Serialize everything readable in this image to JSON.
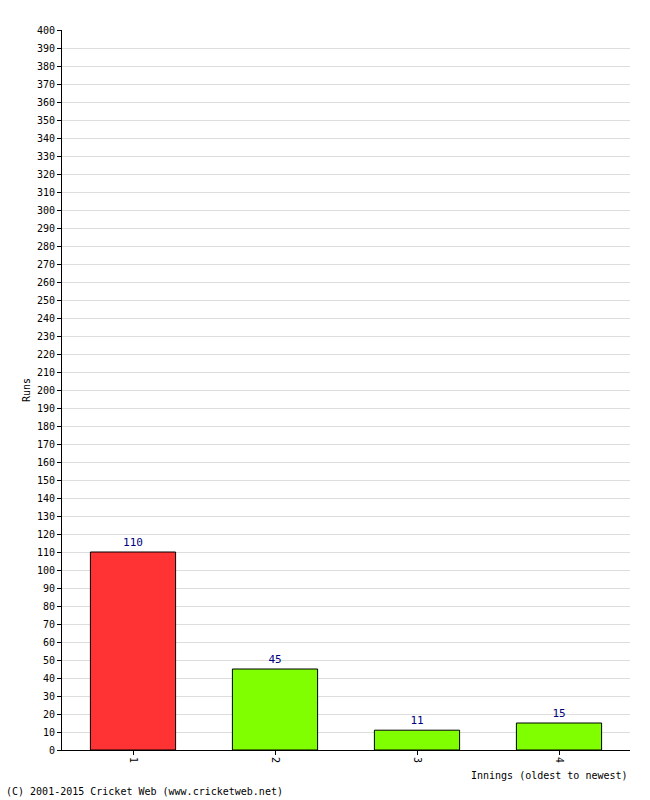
{
  "chart_data": {
    "type": "bar",
    "categories": [
      "1",
      "2",
      "3",
      "4"
    ],
    "values": [
      110,
      45,
      11,
      15
    ],
    "colors": [
      "#ff3333",
      "#80ff00",
      "#80ff00",
      "#80ff00"
    ],
    "x_label": "Innings (oldest to newest)",
    "y_label": "Runs",
    "ylim": [
      0,
      400
    ],
    "yticks": [
      0,
      10,
      20,
      30,
      40,
      50,
      60,
      70,
      80,
      90,
      100,
      110,
      120,
      130,
      140,
      150,
      160,
      170,
      180,
      190,
      200,
      210,
      220,
      230,
      240,
      250,
      260,
      270,
      280,
      290,
      300,
      310,
      320,
      330,
      340,
      350,
      360,
      370,
      380,
      390,
      400
    ],
    "grid": true,
    "data_labels": true,
    "annotations": [
      "(C) 2001-2015 Cricket Web (www.cricketweb.net)"
    ]
  }
}
